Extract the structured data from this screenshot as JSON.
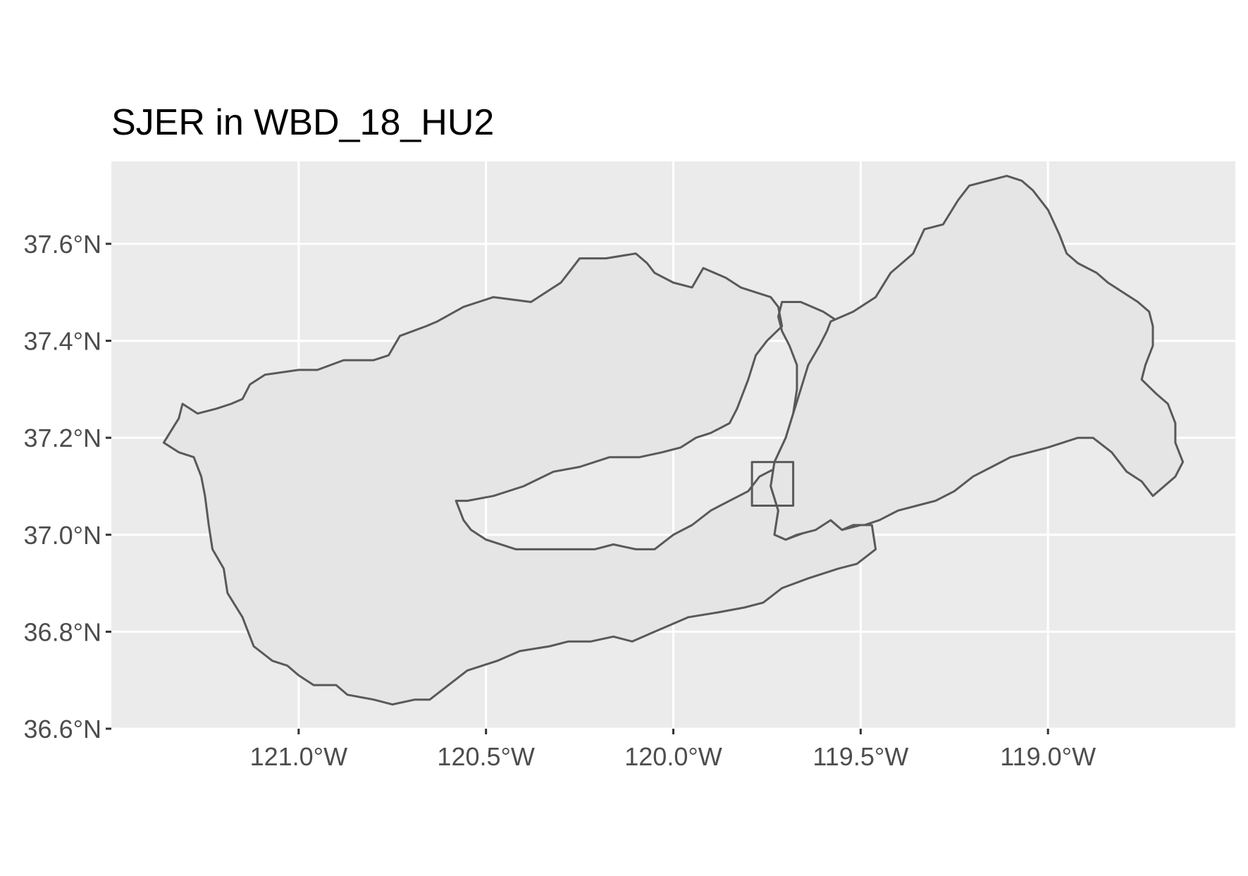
{
  "chart_data": {
    "type": "map",
    "title": "SJER in WBD_18_HU2",
    "xlabel": "",
    "ylabel": "",
    "xlim": [
      -121.5,
      -118.5
    ],
    "ylim": [
      36.6,
      37.77
    ],
    "grid": true,
    "x_ticks": [
      {
        "value": -121.0,
        "label": "121.0°W"
      },
      {
        "value": -120.5,
        "label": "120.5°W"
      },
      {
        "value": -120.0,
        "label": "120.0°W"
      },
      {
        "value": -119.5,
        "label": "119.5°W"
      },
      {
        "value": -119.0,
        "label": "119.0°W"
      }
    ],
    "y_ticks": [
      {
        "value": 37.6,
        "label": "37.6°N"
      },
      {
        "value": 37.4,
        "label": "37.4°N"
      },
      {
        "value": 37.2,
        "label": "37.2°N"
      },
      {
        "value": 37.0,
        "label": "37.0°N"
      },
      {
        "value": 36.8,
        "label": "36.8°N"
      },
      {
        "value": 36.6,
        "label": "36.6°N"
      }
    ],
    "layers": [
      {
        "name": "watershed-west",
        "fill": "#e5e5e5",
        "stroke": "#595959",
        "coords": [
          [
            -121.36,
            37.19
          ],
          [
            -121.32,
            37.24
          ],
          [
            -121.31,
            37.27
          ],
          [
            -121.27,
            37.25
          ],
          [
            -121.22,
            37.26
          ],
          [
            -121.18,
            37.27
          ],
          [
            -121.15,
            37.28
          ],
          [
            -121.13,
            37.31
          ],
          [
            -121.09,
            37.33
          ],
          [
            -121.0,
            37.34
          ],
          [
            -120.95,
            37.34
          ],
          [
            -120.88,
            37.36
          ],
          [
            -120.8,
            37.36
          ],
          [
            -120.76,
            37.37
          ],
          [
            -120.73,
            37.41
          ],
          [
            -120.66,
            37.43
          ],
          [
            -120.63,
            37.44
          ],
          [
            -120.56,
            37.47
          ],
          [
            -120.52,
            37.48
          ],
          [
            -120.48,
            37.49
          ],
          [
            -120.38,
            37.48
          ],
          [
            -120.3,
            37.52
          ],
          [
            -120.27,
            37.55
          ],
          [
            -120.25,
            37.57
          ],
          [
            -120.18,
            37.57
          ],
          [
            -120.1,
            37.58
          ],
          [
            -120.07,
            37.56
          ],
          [
            -120.05,
            37.54
          ],
          [
            -120.0,
            37.52
          ],
          [
            -119.95,
            37.51
          ],
          [
            -119.92,
            37.55
          ],
          [
            -119.86,
            37.53
          ],
          [
            -119.82,
            37.51
          ],
          [
            -119.78,
            37.5
          ],
          [
            -119.74,
            37.49
          ],
          [
            -119.72,
            37.47
          ],
          [
            -119.71,
            37.43
          ],
          [
            -119.75,
            37.4
          ],
          [
            -119.78,
            37.37
          ],
          [
            -119.8,
            37.32
          ],
          [
            -119.83,
            37.26
          ],
          [
            -119.85,
            37.23
          ],
          [
            -119.9,
            37.21
          ],
          [
            -119.94,
            37.2
          ],
          [
            -119.98,
            37.18
          ],
          [
            -120.03,
            37.17
          ],
          [
            -120.09,
            37.16
          ],
          [
            -120.17,
            37.16
          ],
          [
            -120.25,
            37.14
          ],
          [
            -120.32,
            37.13
          ],
          [
            -120.4,
            37.1
          ],
          [
            -120.48,
            37.08
          ],
          [
            -120.55,
            37.07
          ],
          [
            -120.58,
            37.07
          ],
          [
            -120.56,
            37.03
          ],
          [
            -120.54,
            37.01
          ],
          [
            -120.5,
            36.99
          ],
          [
            -120.42,
            36.97
          ],
          [
            -120.33,
            36.97
          ],
          [
            -120.21,
            36.97
          ],
          [
            -120.16,
            36.98
          ],
          [
            -120.1,
            36.97
          ],
          [
            -120.05,
            36.97
          ],
          [
            -120.0,
            37.0
          ],
          [
            -119.95,
            37.02
          ],
          [
            -119.9,
            37.05
          ],
          [
            -119.85,
            37.07
          ],
          [
            -119.8,
            37.09
          ],
          [
            -119.77,
            37.12
          ],
          [
            -119.72,
            37.14
          ],
          [
            -119.69,
            37.18
          ],
          [
            -119.66,
            37.22
          ],
          [
            -119.64,
            37.27
          ],
          [
            -119.6,
            37.32
          ],
          [
            -119.58,
            37.38
          ],
          [
            -119.56,
            37.44
          ],
          [
            -119.6,
            37.46
          ],
          [
            -119.66,
            37.48
          ],
          [
            -119.71,
            37.48
          ],
          [
            -119.72,
            37.45
          ],
          [
            -119.71,
            37.42
          ],
          [
            -119.69,
            37.39
          ],
          [
            -119.67,
            37.35
          ],
          [
            -119.67,
            37.3
          ],
          [
            -119.68,
            37.25
          ],
          [
            -119.7,
            37.2
          ],
          [
            -119.73,
            37.15
          ],
          [
            -119.74,
            37.1
          ],
          [
            -119.72,
            37.05
          ],
          [
            -119.73,
            37.0
          ],
          [
            -119.7,
            36.99
          ],
          [
            -119.63,
            37.01
          ],
          [
            -119.58,
            37.03
          ],
          [
            -119.55,
            37.01
          ],
          [
            -119.5,
            37.02
          ],
          [
            -119.47,
            37.02
          ],
          [
            -119.46,
            36.97
          ],
          [
            -119.51,
            36.94
          ],
          [
            -119.56,
            36.93
          ],
          [
            -119.64,
            36.91
          ],
          [
            -119.71,
            36.89
          ],
          [
            -119.76,
            36.86
          ],
          [
            -119.81,
            36.85
          ],
          [
            -119.88,
            36.84
          ],
          [
            -119.96,
            36.83
          ],
          [
            -120.05,
            36.8
          ],
          [
            -120.11,
            36.78
          ],
          [
            -120.16,
            36.79
          ],
          [
            -120.22,
            36.78
          ],
          [
            -120.28,
            36.78
          ],
          [
            -120.33,
            36.77
          ],
          [
            -120.41,
            36.76
          ],
          [
            -120.47,
            36.74
          ],
          [
            -120.55,
            36.72
          ],
          [
            -120.6,
            36.69
          ],
          [
            -120.65,
            36.66
          ],
          [
            -120.69,
            36.66
          ],
          [
            -120.75,
            36.65
          ],
          [
            -120.8,
            36.66
          ],
          [
            -120.87,
            36.67
          ],
          [
            -120.9,
            36.69
          ],
          [
            -120.96,
            36.69
          ],
          [
            -121.0,
            36.71
          ],
          [
            -121.03,
            36.73
          ],
          [
            -121.07,
            36.74
          ],
          [
            -121.12,
            36.77
          ],
          [
            -121.15,
            36.83
          ],
          [
            -121.19,
            36.88
          ],
          [
            -121.2,
            36.93
          ],
          [
            -121.23,
            36.97
          ],
          [
            -121.24,
            37.02
          ],
          [
            -121.25,
            37.08
          ],
          [
            -121.26,
            37.12
          ],
          [
            -121.28,
            37.16
          ],
          [
            -121.32,
            37.17
          ],
          [
            -121.36,
            37.19
          ]
        ]
      },
      {
        "name": "watershed-east",
        "fill": "#e5e5e5",
        "stroke": "#595959",
        "coords": [
          [
            -119.58,
            37.44
          ],
          [
            -119.52,
            37.46
          ],
          [
            -119.46,
            37.49
          ],
          [
            -119.42,
            37.54
          ],
          [
            -119.36,
            37.58
          ],
          [
            -119.33,
            37.63
          ],
          [
            -119.28,
            37.64
          ],
          [
            -119.24,
            37.69
          ],
          [
            -119.21,
            37.72
          ],
          [
            -119.16,
            37.73
          ],
          [
            -119.11,
            37.74
          ],
          [
            -119.07,
            37.73
          ],
          [
            -119.04,
            37.71
          ],
          [
            -119.0,
            37.67
          ],
          [
            -118.97,
            37.62
          ],
          [
            -118.95,
            37.58
          ],
          [
            -118.92,
            37.56
          ],
          [
            -118.87,
            37.54
          ],
          [
            -118.84,
            37.52
          ],
          [
            -118.8,
            37.5
          ],
          [
            -118.76,
            37.48
          ],
          [
            -118.73,
            37.46
          ],
          [
            -118.72,
            37.43
          ],
          [
            -118.72,
            37.39
          ],
          [
            -118.74,
            37.35
          ],
          [
            -118.75,
            37.32
          ],
          [
            -118.71,
            37.29
          ],
          [
            -118.68,
            37.27
          ],
          [
            -118.66,
            37.23
          ],
          [
            -118.66,
            37.19
          ],
          [
            -118.64,
            37.15
          ],
          [
            -118.66,
            37.12
          ],
          [
            -118.69,
            37.1
          ],
          [
            -118.72,
            37.08
          ],
          [
            -118.75,
            37.11
          ],
          [
            -118.79,
            37.13
          ],
          [
            -118.83,
            37.17
          ],
          [
            -118.88,
            37.2
          ],
          [
            -118.92,
            37.2
          ],
          [
            -118.96,
            37.19
          ],
          [
            -119.0,
            37.18
          ],
          [
            -119.05,
            37.17
          ],
          [
            -119.1,
            37.16
          ],
          [
            -119.15,
            37.14
          ],
          [
            -119.2,
            37.12
          ],
          [
            -119.25,
            37.09
          ],
          [
            -119.3,
            37.07
          ],
          [
            -119.35,
            37.06
          ],
          [
            -119.4,
            37.05
          ],
          [
            -119.45,
            37.03
          ],
          [
            -119.49,
            37.02
          ],
          [
            -119.52,
            37.02
          ],
          [
            -119.55,
            37.01
          ],
          [
            -119.58,
            37.03
          ],
          [
            -119.62,
            37.01
          ],
          [
            -119.67,
            37.0
          ],
          [
            -119.7,
            36.99
          ],
          [
            -119.73,
            37.0
          ],
          [
            -119.72,
            37.05
          ],
          [
            -119.74,
            37.1
          ],
          [
            -119.73,
            37.15
          ],
          [
            -119.7,
            37.2
          ],
          [
            -119.68,
            37.25
          ],
          [
            -119.66,
            37.3
          ],
          [
            -119.64,
            37.35
          ],
          [
            -119.61,
            37.39
          ],
          [
            -119.59,
            37.42
          ],
          [
            -119.58,
            37.44
          ]
        ]
      },
      {
        "name": "sjer-site-box",
        "fill": "none",
        "stroke": "#595959",
        "coords": [
          [
            -119.79,
            37.06
          ],
          [
            -119.68,
            37.06
          ],
          [
            -119.68,
            37.15
          ],
          [
            -119.79,
            37.15
          ],
          [
            -119.79,
            37.06
          ]
        ]
      }
    ]
  }
}
